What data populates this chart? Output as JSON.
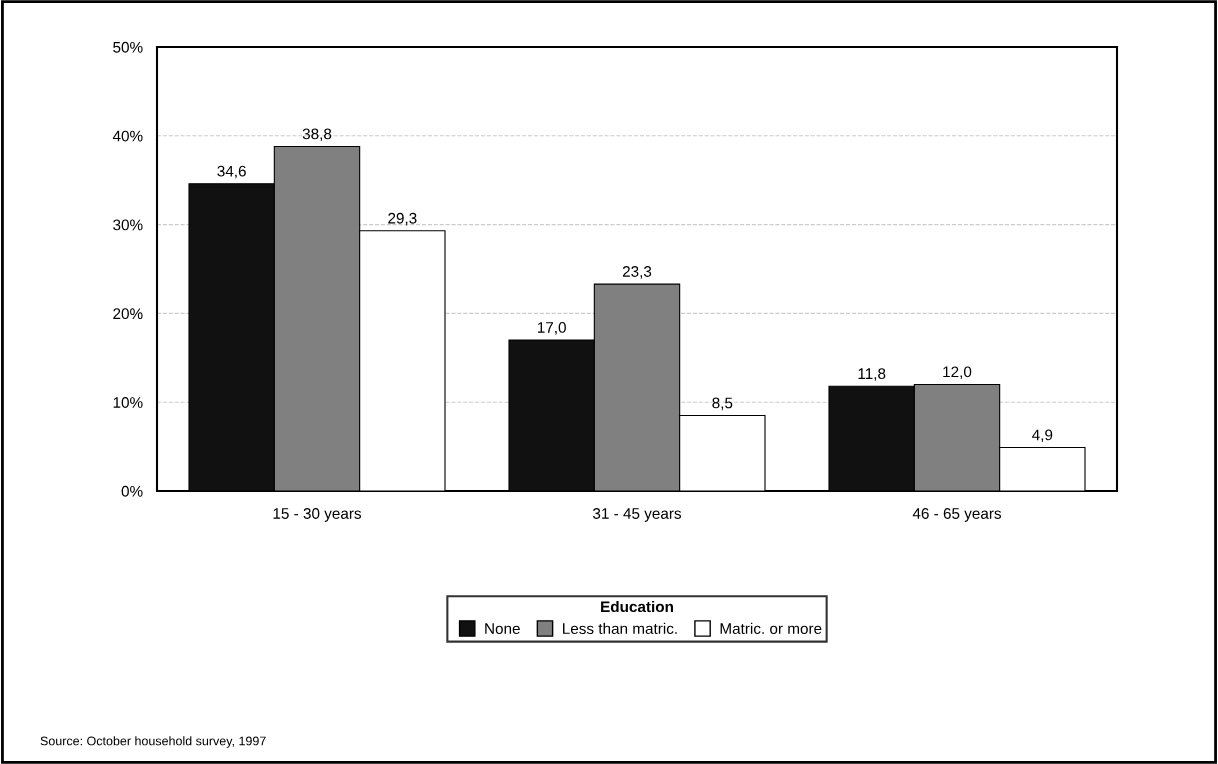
{
  "chart_data": {
    "type": "bar",
    "categories": [
      "15 - 30 years",
      "31 - 45 years",
      "46 - 65 years"
    ],
    "series": [
      {
        "name": "None",
        "color": "#111111",
        "values": [
          34.6,
          17.0,
          11.8
        ],
        "value_labels": [
          "34,6",
          "17,0",
          "11,8"
        ]
      },
      {
        "name": "Less than matric.",
        "color": "#808080",
        "values": [
          38.8,
          23.3,
          12.0
        ],
        "value_labels": [
          "38,8",
          "23,3",
          "12,0"
        ]
      },
      {
        "name": "Matric. or more",
        "color": "#ffffff",
        "values": [
          29.3,
          8.5,
          4.9
        ],
        "value_labels": [
          "29,3",
          "8,5",
          "4,9"
        ]
      }
    ],
    "ylim": [
      0,
      50
    ],
    "yticks": [
      {
        "value": 0,
        "label": "0%"
      },
      {
        "value": 10,
        "label": "10%"
      },
      {
        "value": 20,
        "label": "20%"
      },
      {
        "value": 30,
        "label": "30%"
      },
      {
        "value": 40,
        "label": "40%"
      },
      {
        "value": 50,
        "label": "50%"
      }
    ],
    "grid": "y",
    "legend": "bottom",
    "legend_title": "Education",
    "annotations": [
      "Source: October household survey, 1997"
    ]
  }
}
